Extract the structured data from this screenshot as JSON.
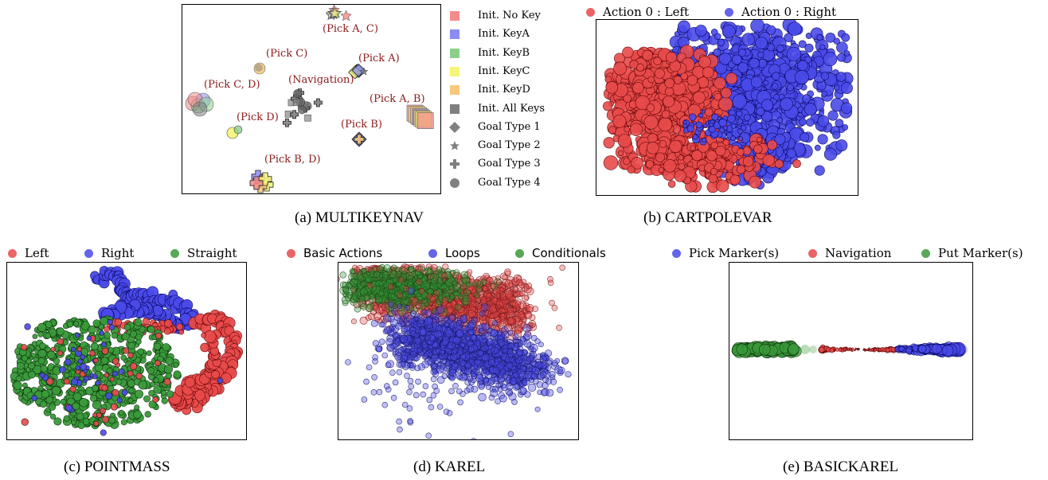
{
  "chart_data": [
    {
      "type": "scatter",
      "caption": "(a) MULTIKEYNAV",
      "legend": [
        {
          "label": "Init. No Key",
          "color": "#f28b8b",
          "marker": "square"
        },
        {
          "label": "Init. KeyA",
          "color": "#8c8cf2",
          "marker": "square"
        },
        {
          "label": "Init. KeyB",
          "color": "#8ccf8c",
          "marker": "square"
        },
        {
          "label": "Init. KeyC",
          "color": "#f5f57a",
          "marker": "square"
        },
        {
          "label": "Init. KeyD",
          "color": "#f7c97a",
          "marker": "square"
        },
        {
          "label": "Init. All Keys",
          "color": "#808080",
          "marker": "square"
        },
        {
          "label": "Goal Type 1",
          "color": "#808080",
          "marker": "diamond"
        },
        {
          "label": "Goal Type 2",
          "color": "#808080",
          "marker": "star"
        },
        {
          "label": "Goal Type 3",
          "color": "#808080",
          "marker": "plus"
        },
        {
          "label": "Goal Type 4",
          "color": "#808080",
          "marker": "circle"
        }
      ],
      "annotations": [
        "(Pick A, C)",
        "(Pick C)",
        "(Pick A)",
        "(Pick C, D)",
        "(Navigation)",
        "(Pick A, B)",
        "(Pick D)",
        "(Pick B)",
        "(Pick B, D)"
      ]
    },
    {
      "type": "scatter",
      "caption": "(b) CARTPOLEVAR",
      "legend": [
        {
          "label": "Action 0 : Left",
          "color": "#e84a4a"
        },
        {
          "label": "Action 0 : Right",
          "color": "#4a4ae8"
        }
      ]
    },
    {
      "type": "scatter",
      "caption": "(c) POINTMASS",
      "legend": [
        {
          "label": "Left",
          "color": "#e84a4a"
        },
        {
          "label": "Right",
          "color": "#4a4ae8"
        },
        {
          "label": "Straight",
          "color": "#3a9a3a"
        }
      ]
    },
    {
      "type": "scatter",
      "caption": "(d) KAREL",
      "legend": [
        {
          "label": "Basic Actions",
          "color": "#e84a4a"
        },
        {
          "label": "Loops",
          "color": "#4a4ae8"
        },
        {
          "label": "Conditionals",
          "color": "#3a9a3a"
        }
      ]
    },
    {
      "type": "scatter",
      "caption": "(e) BASICKAREL",
      "legend": [
        {
          "label": "Pick Marker(s)",
          "color": "#4a4ae8"
        },
        {
          "label": "Navigation",
          "color": "#e84a4a"
        },
        {
          "label": "Put Marker(s)",
          "color": "#3a9a3a"
        }
      ]
    }
  ]
}
